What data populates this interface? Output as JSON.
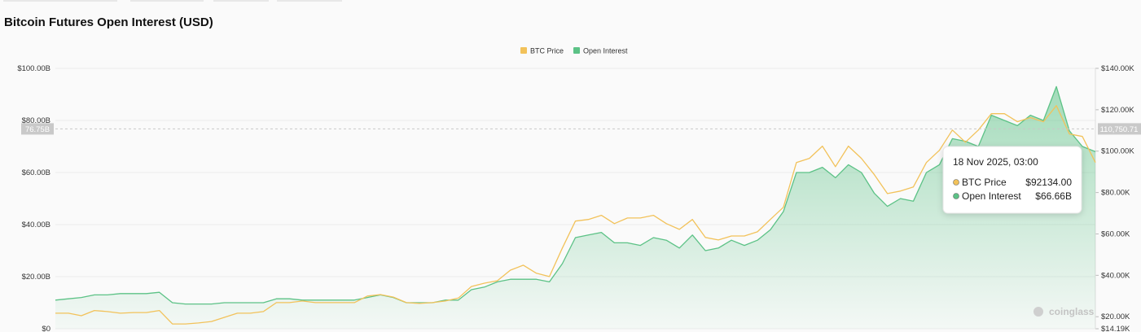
{
  "chart_data": {
    "type": "line",
    "title": "Bitcoin Futures Open Interest (USD)",
    "series": [
      {
        "name": "BTC Price",
        "color": "#f2c25a",
        "axis": "y2",
        "values": [
          21700,
          21700,
          20500,
          23000,
          22500,
          21700,
          22000,
          22000,
          23000,
          16500,
          16500,
          17000,
          17700,
          19700,
          21700,
          21700,
          22500,
          26800,
          26800,
          27600,
          26800,
          26800,
          26800,
          26800,
          30000,
          30700,
          29500,
          26800,
          26400,
          26800,
          27600,
          29000,
          34600,
          36200,
          37400,
          42500,
          44900,
          41000,
          39400,
          53200,
          66200,
          67000,
          69000,
          65000,
          67700,
          67700,
          69000,
          65000,
          62200,
          67000,
          58300,
          57100,
          59000,
          59000,
          61000,
          67000,
          72900,
          94500,
          96500,
          102400,
          92500,
          102400,
          96500,
          88600,
          79500,
          80700,
          82700,
          94500,
          100400,
          110200,
          104300,
          110200,
          118100,
          118100,
          114200,
          116200,
          114200,
          122000,
          108300,
          107100,
          94500
        ]
      },
      {
        "name": "Open Interest",
        "color": "#5cc286",
        "values": [
          11,
          11.5,
          12,
          13,
          13,
          13.5,
          13.5,
          13.5,
          14,
          10,
          9.5,
          9.5,
          9.5,
          10,
          10,
          10,
          10,
          11.5,
          11.5,
          11,
          11,
          11,
          11,
          11,
          12,
          13,
          12,
          10,
          10,
          10,
          11,
          11,
          15,
          16,
          18,
          19,
          19,
          19,
          18,
          25,
          35,
          36,
          37,
          33,
          33,
          32,
          35,
          34,
          31,
          36,
          30,
          31,
          34,
          32,
          34,
          38,
          45,
          60,
          60,
          62,
          58,
          63,
          60,
          52,
          47,
          50,
          49,
          60,
          63,
          73,
          72,
          70,
          82,
          80,
          78,
          82,
          80,
          93,
          76,
          70,
          68
        ]
      }
    ],
    "ylim": [
      0,
      100
    ],
    "yticks": [
      {
        "value": 0,
        "label": "$0"
      },
      {
        "value": 20,
        "label": "$20.00B"
      },
      {
        "value": 40,
        "label": "$40.00B"
      },
      {
        "value": 60,
        "label": "$60.00B"
      },
      {
        "value": 80,
        "label": "$80.00B"
      },
      {
        "value": 100,
        "label": "$100.00B"
      }
    ],
    "y2lim": [
      14190,
      140000
    ],
    "y2ticks": [
      {
        "value": 14190,
        "label": "$14.19K"
      },
      {
        "value": 20000,
        "label": "$20.00K"
      },
      {
        "value": 40000,
        "label": "$40.00K"
      },
      {
        "value": 60000,
        "label": "$60.00K"
      },
      {
        "value": 80000,
        "label": "$80.00K"
      },
      {
        "value": 100000,
        "label": "$100.00K"
      },
      {
        "value": 120000,
        "label": "$120.00K"
      },
      {
        "value": 140000,
        "label": "$140.00K"
      }
    ],
    "grid": true,
    "crosshair": {
      "y": {
        "value": 76.75,
        "label": "76.75B"
      },
      "y2": {
        "value": 110750.71,
        "label": "110,750.71"
      }
    },
    "tooltip": {
      "title": "18 Nov 2025, 03:00",
      "items": [
        {
          "name": "BTC Price",
          "value": "$92134.00"
        },
        {
          "name": "Open Interest",
          "value": "$66.66B"
        }
      ]
    },
    "watermark": "coinglass"
  }
}
